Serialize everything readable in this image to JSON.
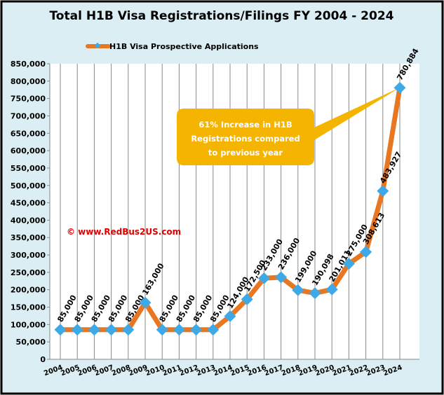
{
  "chart_data": {
    "type": "line",
    "title": "Total H1B Visa Registrations/Filings FY 2004 - 2024",
    "categories": [
      "2004",
      "2005",
      "2006",
      "2007",
      "2008",
      "2009",
      "2010",
      "2011",
      "2012",
      "2013",
      "2014",
      "2015",
      "2016",
      "2017",
      "2018",
      "2019",
      "2020",
      "2021",
      "2022",
      "2023",
      "2024"
    ],
    "series": [
      {
        "name": "H1B Visa Prospective Applications",
        "values": [
          85000,
          85000,
          85000,
          85000,
          85000,
          163000,
          85000,
          85000,
          85000,
          85000,
          124000,
          172500,
          233000,
          236000,
          199000,
          190098,
          201011,
          275000,
          308613,
          483927,
          780884
        ]
      }
    ],
    "data_labels": [
      "85,000",
      "85,000",
      "85,000",
      "85,000",
      "85,000",
      "163,000",
      "85,000",
      "85,000",
      "85,000",
      "85,000",
      "124,000",
      "172,500",
      "233,000",
      "236,000",
      "199,000",
      "190,098",
      "201,011",
      "275,000",
      "308,613",
      "483,927",
      "780,884"
    ],
    "ylim": [
      0,
      850000
    ],
    "yticks": [
      0,
      50000,
      100000,
      150000,
      200000,
      250000,
      300000,
      350000,
      400000,
      450000,
      500000,
      550000,
      600000,
      650000,
      700000,
      750000,
      800000,
      850000
    ],
    "ytick_labels": [
      "0",
      "50,000",
      "100,000",
      "150,000",
      "200,000",
      "250,000",
      "300,000",
      "350,000",
      "400,000",
      "450,000",
      "500,000",
      "550,000",
      "600,000",
      "650,000",
      "700,000",
      "750,000",
      "800,000",
      "850,000"
    ],
    "grid": "vertical",
    "legend": "top",
    "annotation": "61% Increase in H1B Registrations compared to previous year",
    "annotation_lines": [
      "61% Increase in H1B",
      "Registrations compared",
      "to previous year"
    ],
    "watermark": "© www.RedBus2US.com",
    "colors": {
      "line": "#e87722",
      "marker": "#3fa9e8",
      "background": "#daeef3",
      "callout": "#f5b400",
      "watermark": "#e00000"
    }
  }
}
